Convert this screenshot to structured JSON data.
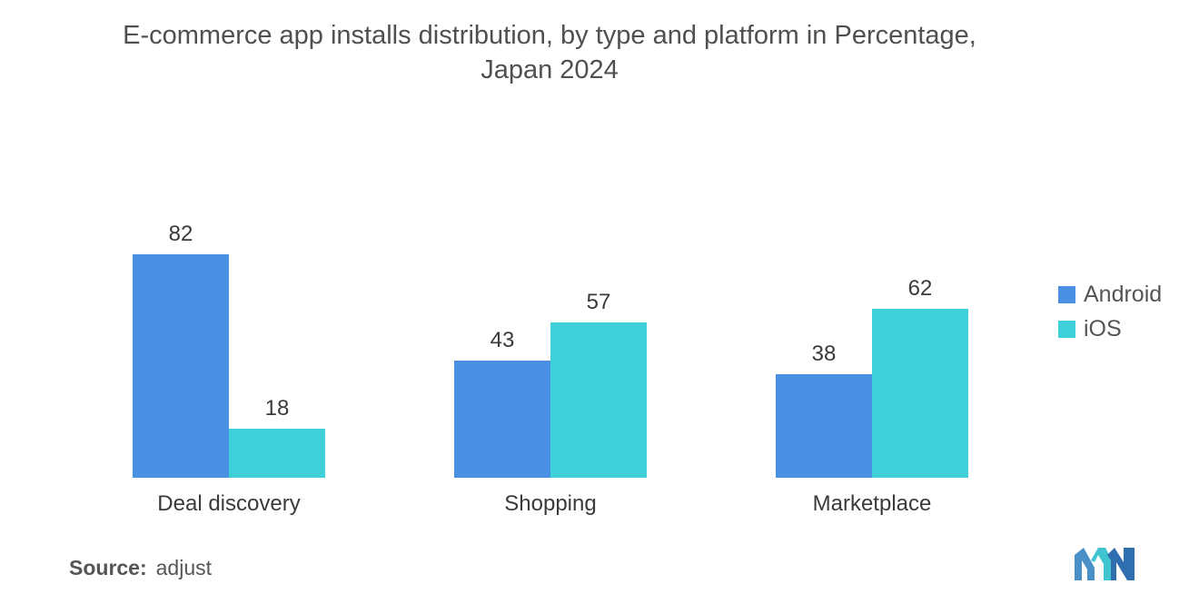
{
  "title_line1": "E-commerce app installs distribution, by type and platform in Percentage,",
  "title_line2": "Japan 2024",
  "source_label": "Source:",
  "source_value": "adjust",
  "colors": {
    "android": "#4a90e2",
    "ios": "#3fd0d9"
  },
  "chart_data": {
    "type": "bar",
    "title": "E-commerce app installs distribution, by type and platform in Percentage, Japan 2024",
    "categories": [
      "Deal discovery",
      "Shopping",
      "Marketplace"
    ],
    "series": [
      {
        "name": "Android",
        "values": [
          82,
          43,
          38
        ]
      },
      {
        "name": "iOS",
        "values": [
          18,
          57,
          62
        ]
      }
    ],
    "xlabel": "",
    "ylabel": "",
    "ylim": [
      0,
      100
    ],
    "grid": false,
    "legend_position": "right"
  }
}
